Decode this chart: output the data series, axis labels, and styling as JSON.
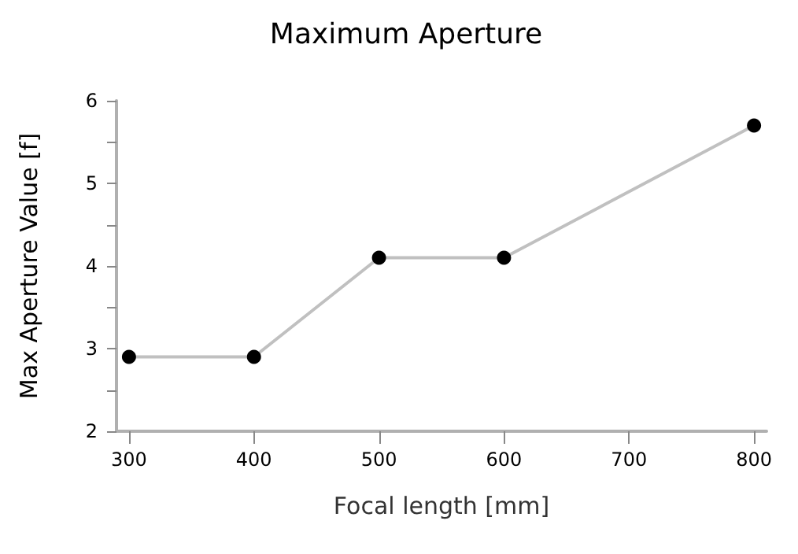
{
  "chart_data": {
    "type": "line",
    "title": "Maximum Aperture",
    "xlabel": "Focal length [mm]",
    "ylabel": "Max Aperture Value [f]",
    "x": [
      300,
      400,
      500,
      600,
      800
    ],
    "series": [
      {
        "color": "#c0c0c0",
        "values": [
          2.9,
          2.9,
          4.1,
          4.1,
          5.7
        ]
      }
    ],
    "xlim": [
      290,
      810
    ],
    "xticks": [
      300,
      400,
      500,
      600,
      700,
      800
    ],
    "ylim": [
      2,
      6
    ],
    "yticks": [
      2,
      {
        "value": 2.5,
        "label": null
      },
      3,
      {
        "value": 3.5,
        "label": null
      },
      4,
      {
        "value": 4.5,
        "label": null
      },
      5,
      {
        "value": 5.5,
        "label": null
      },
      6
    ],
    "grid": false,
    "marker": "circle",
    "line_style": "solid"
  }
}
